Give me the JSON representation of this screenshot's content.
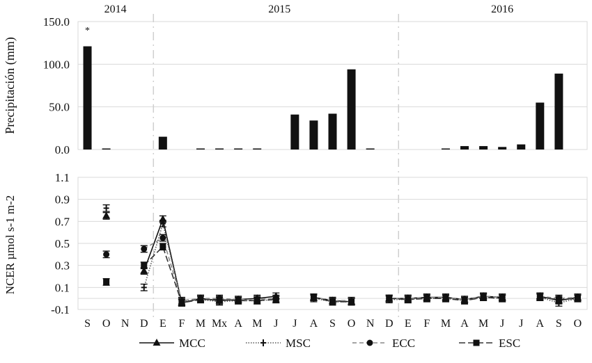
{
  "chart_data": [
    {
      "type": "bar",
      "ylabel": "Precipitación (mm)",
      "ylim": [
        0,
        150
      ],
      "yticks": [
        "0.0",
        "50.0",
        "100.0",
        "150.0"
      ],
      "grid": true,
      "years": [
        "2014",
        "2015",
        "2016"
      ],
      "categories": [
        "S",
        "O",
        "N",
        "D",
        "E",
        "F",
        "M",
        "Mx",
        "A",
        "M",
        "J",
        "J",
        "A",
        "S",
        "O",
        "N",
        "D",
        "E",
        "F",
        "M",
        "A",
        "M",
        "J",
        "J",
        "A",
        "S",
        "O"
      ],
      "values": [
        121,
        1,
        0,
        0,
        15,
        0,
        0.5,
        0.5,
        0.5,
        0.5,
        0,
        41,
        34,
        42,
        94,
        0.5,
        0,
        0,
        0,
        0.5,
        4,
        4,
        3,
        6,
        55,
        89,
        0
      ],
      "annotation": "*",
      "bar_color": "#111111"
    },
    {
      "type": "line",
      "ylabel": "NCER µmol s-1 m-2",
      "ylim": [
        -0.1,
        1.1
      ],
      "yticks": [
        "-0.1",
        "0.1",
        "0.3",
        "0.5",
        "0.7",
        "0.9",
        "1.1"
      ],
      "grid": true,
      "legend_position": "bottom",
      "categories": [
        "S",
        "O",
        "N",
        "D",
        "E",
        "F",
        "M",
        "Mx",
        "A",
        "M",
        "J",
        "J",
        "A",
        "S",
        "O",
        "N",
        "D",
        "E",
        "F",
        "M",
        "A",
        "M",
        "J",
        "J",
        "A",
        "S",
        "O"
      ],
      "series": [
        {
          "name": "MCC",
          "color": "#111111",
          "dash": "solid",
          "marker": "triangle",
          "values": [
            null,
            0.75,
            null,
            0.25,
            0.72,
            -0.04,
            0.0,
            -0.02,
            -0.01,
            0.0,
            0.02,
            null,
            0.01,
            -0.02,
            -0.03,
            null,
            0.0,
            0.0,
            0.01,
            0.01,
            -0.01,
            0.02,
            0.01,
            null,
            0.02,
            -0.02,
            0.01
          ]
        },
        {
          "name": "MSC",
          "color": "#555555",
          "dash": "dotted",
          "marker": "cross",
          "values": [
            null,
            0.82,
            null,
            0.1,
            0.68,
            -0.03,
            -0.01,
            -0.03,
            -0.02,
            -0.02,
            -0.01,
            null,
            0.0,
            -0.03,
            -0.03,
            null,
            -0.01,
            -0.01,
            0.0,
            0.0,
            -0.02,
            0.01,
            0.0,
            null,
            0.01,
            -0.04,
            0.0
          ]
        },
        {
          "name": "ECC",
          "color": "#888888",
          "dash": "dashed",
          "marker": "circle",
          "values": [
            null,
            0.4,
            null,
            0.45,
            0.55,
            -0.02,
            0.0,
            0.0,
            -0.01,
            -0.01,
            0.0,
            null,
            0.01,
            -0.02,
            -0.02,
            null,
            0.0,
            0.0,
            0.01,
            0.01,
            -0.01,
            0.02,
            0.01,
            null,
            0.02,
            0.0,
            0.01
          ]
        },
        {
          "name": "ESC",
          "color": "#333333",
          "dash": "longdash",
          "marker": "square",
          "values": [
            null,
            0.15,
            null,
            0.3,
            0.47,
            -0.04,
            -0.01,
            -0.01,
            -0.02,
            -0.02,
            -0.01,
            null,
            0.01,
            -0.03,
            -0.03,
            null,
            0.0,
            -0.01,
            0.0,
            0.0,
            -0.02,
            0.01,
            0.0,
            null,
            0.01,
            -0.01,
            0.0
          ]
        }
      ]
    }
  ]
}
